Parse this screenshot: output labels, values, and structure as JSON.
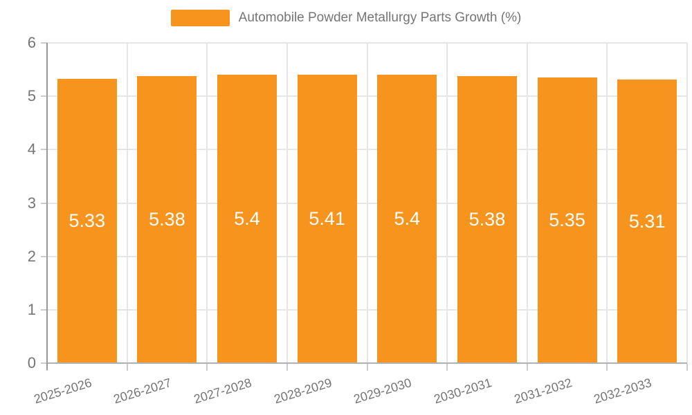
{
  "legend": {
    "label": "Automobile Powder Metallurgy Parts Growth (%)"
  },
  "chart_data": {
    "type": "bar",
    "title": "Automobile Powder Metallurgy Parts Growth (%)",
    "categories": [
      "2025-2026",
      "2026-2027",
      "2027-2028",
      "2028-2029",
      "2029-2030",
      "2030-2031",
      "2031-2032",
      "2032-2033"
    ],
    "values": [
      5.33,
      5.38,
      5.4,
      5.41,
      5.4,
      5.38,
      5.35,
      5.31
    ],
    "value_labels": [
      "5.33",
      "5.38",
      "5.4",
      "5.41",
      "5.4",
      "5.38",
      "5.35",
      "5.31"
    ],
    "xlabel": "",
    "ylabel": "",
    "ylim": [
      0,
      6
    ],
    "yticks": [
      0,
      1,
      2,
      3,
      4,
      5,
      6
    ],
    "grid": true,
    "legend_position": "top-center",
    "colors": {
      "bar": "#F7941D",
      "grid": "#e6e6e6",
      "axis_line": "#999999",
      "baseline": "#b0b0b0",
      "tick_mark": "#cccccc",
      "tick_label": "#757575",
      "value_label": "#ffffff",
      "background": "#ffffff"
    }
  }
}
